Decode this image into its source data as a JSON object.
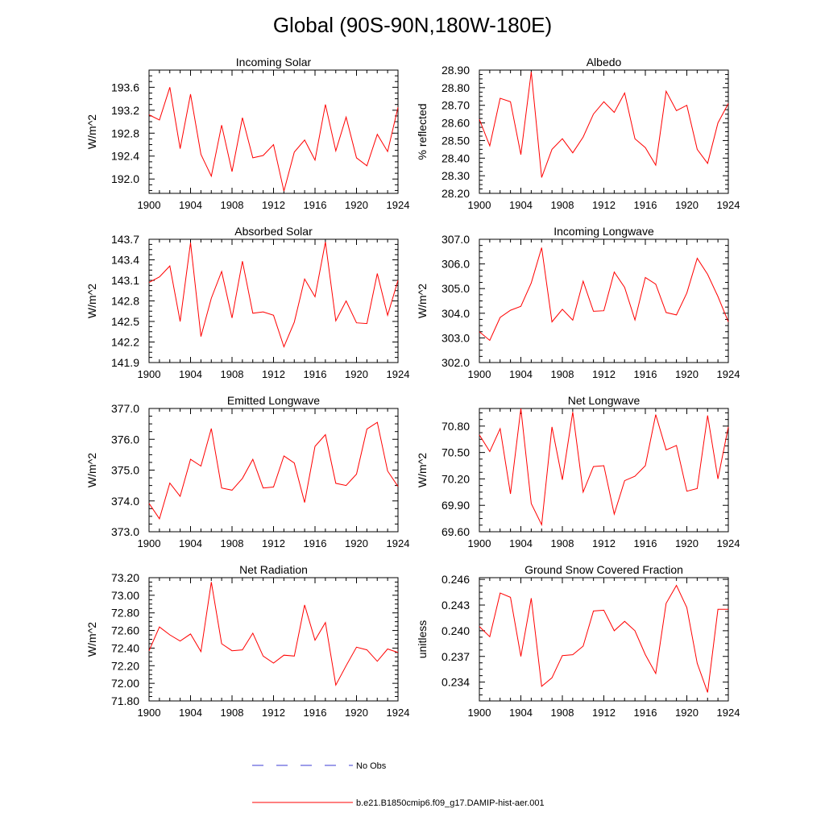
{
  "title": "Global (90S-90N,180W-180E)",
  "legend": {
    "items": [
      {
        "label": "No Obs",
        "color": "#3b3bd6",
        "style": "dashed"
      },
      {
        "label": "b.e21.B1850cmip6.f09_g17.DAMIP-hist-aer.001",
        "color": "#ff0000",
        "style": "solid"
      }
    ]
  },
  "chart_data": [
    {
      "type": "line",
      "title": "Incoming Solar",
      "ylabel": "W/m^2",
      "xlim": [
        1900,
        1924
      ],
      "ylim": [
        191.75,
        193.9
      ],
      "xticks": [
        "1900",
        "1904",
        "1908",
        "1912",
        "1916",
        "1920",
        "1924"
      ],
      "yticks": [
        "192.0",
        "192.4",
        "192.8",
        "193.2",
        "193.6"
      ],
      "series": [
        {
          "color": "#ff0000",
          "x": [
            1900,
            1901,
            1902,
            1903,
            1904,
            1905,
            1906,
            1907,
            1908,
            1909,
            1910,
            1911,
            1912,
            1913,
            1914,
            1915,
            1916,
            1917,
            1918,
            1919,
            1920,
            1921,
            1922,
            1923,
            1924
          ],
          "y": [
            193.12,
            193.03,
            193.6,
            192.53,
            193.48,
            192.43,
            192.05,
            192.94,
            192.13,
            193.07,
            192.37,
            192.41,
            192.6,
            191.79,
            192.47,
            192.68,
            192.33,
            193.3,
            192.49,
            193.08,
            192.37,
            192.23,
            192.78,
            192.48,
            193.25
          ]
        }
      ]
    },
    {
      "type": "line",
      "title": "Albedo",
      "ylabel": "% reflected",
      "xlim": [
        1900,
        1924
      ],
      "ylim": [
        28.2,
        28.9
      ],
      "xticks": [
        "1900",
        "1904",
        "1908",
        "1912",
        "1916",
        "1920",
        "1924"
      ],
      "yticks": [
        "28.20",
        "28.30",
        "28.40",
        "28.50",
        "28.60",
        "28.70",
        "28.80",
        "28.90"
      ],
      "series": [
        {
          "color": "#ff0000",
          "x": [
            1900,
            1901,
            1902,
            1903,
            1904,
            1905,
            1906,
            1907,
            1908,
            1909,
            1910,
            1911,
            1912,
            1913,
            1914,
            1915,
            1916,
            1917,
            1918,
            1919,
            1920,
            1921,
            1922,
            1923,
            1924
          ],
          "y": [
            28.62,
            28.47,
            28.74,
            28.72,
            28.42,
            28.89,
            28.29,
            28.45,
            28.51,
            28.43,
            28.52,
            28.65,
            28.72,
            28.66,
            28.77,
            28.51,
            28.46,
            28.36,
            28.78,
            28.67,
            28.7,
            28.45,
            28.37,
            28.6,
            28.71
          ]
        }
      ]
    },
    {
      "type": "line",
      "title": "Absorbed Solar",
      "ylabel": "W/m^2",
      "xlim": [
        1900,
        1924
      ],
      "ylim": [
        141.9,
        143.7
      ],
      "xticks": [
        "1900",
        "1904",
        "1908",
        "1912",
        "1916",
        "1920",
        "1924"
      ],
      "yticks": [
        "141.9",
        "142.2",
        "142.5",
        "142.8",
        "143.1",
        "143.4",
        "143.7"
      ],
      "series": [
        {
          "color": "#ff0000",
          "x": [
            1900,
            1901,
            1902,
            1903,
            1904,
            1905,
            1906,
            1907,
            1908,
            1909,
            1910,
            1911,
            1912,
            1913,
            1914,
            1915,
            1916,
            1917,
            1918,
            1919,
            1920,
            1921,
            1922,
            1923,
            1924
          ],
          "y": [
            143.07,
            143.15,
            143.31,
            142.5,
            143.65,
            142.28,
            142.84,
            143.23,
            142.55,
            143.38,
            142.62,
            142.64,
            142.59,
            142.13,
            142.49,
            143.12,
            142.86,
            143.66,
            142.51,
            142.8,
            142.48,
            142.47,
            143.2,
            142.59,
            143.1
          ]
        }
      ]
    },
    {
      "type": "line",
      "title": "Incoming Longwave",
      "ylabel": "W/m^2",
      "xlim": [
        1900,
        1924
      ],
      "ylim": [
        302.0,
        307.0
      ],
      "xticks": [
        "1900",
        "1904",
        "1908",
        "1912",
        "1916",
        "1920",
        "1924"
      ],
      "yticks": [
        "302.0",
        "303.0",
        "304.0",
        "305.0",
        "306.0",
        "307.0"
      ],
      "series": [
        {
          "color": "#ff0000",
          "x": [
            1900,
            1901,
            1902,
            1903,
            1904,
            1905,
            1906,
            1907,
            1908,
            1909,
            1910,
            1911,
            1912,
            1913,
            1914,
            1915,
            1916,
            1917,
            1918,
            1919,
            1920,
            1921,
            1922,
            1923,
            1924
          ],
          "y": [
            303.25,
            302.9,
            303.83,
            304.12,
            304.28,
            305.23,
            306.66,
            303.65,
            304.16,
            303.72,
            305.3,
            304.08,
            304.1,
            305.67,
            305.05,
            303.73,
            305.45,
            305.18,
            304.03,
            303.93,
            304.82,
            306.23,
            305.58,
            304.68,
            303.65
          ]
        }
      ]
    },
    {
      "type": "line",
      "title": "Emitted Longwave",
      "ylabel": "W/m^2",
      "xlim": [
        1900,
        1924
      ],
      "ylim": [
        373.0,
        377.0
      ],
      "xticks": [
        "1900",
        "1904",
        "1908",
        "1912",
        "1916",
        "1920",
        "1924"
      ],
      "yticks": [
        "373.0",
        "374.0",
        "375.0",
        "376.0",
        "377.0"
      ],
      "series": [
        {
          "color": "#ff0000",
          "x": [
            1900,
            1901,
            1902,
            1903,
            1904,
            1905,
            1906,
            1907,
            1908,
            1909,
            1910,
            1911,
            1912,
            1913,
            1914,
            1915,
            1916,
            1917,
            1918,
            1919,
            1920,
            1921,
            1922,
            1923,
            1924
          ],
          "y": [
            373.92,
            373.42,
            374.58,
            374.15,
            375.35,
            375.13,
            376.35,
            374.42,
            374.35,
            374.73,
            375.35,
            374.42,
            374.45,
            375.46,
            375.23,
            373.95,
            375.77,
            376.15,
            374.57,
            374.5,
            374.87,
            376.33,
            376.55,
            374.97,
            374.47
          ]
        }
      ]
    },
    {
      "type": "line",
      "title": "Net Longwave",
      "ylabel": "W/m^2",
      "xlim": [
        1900,
        1924
      ],
      "ylim": [
        69.6,
        71.0
      ],
      "xticks": [
        "1900",
        "1904",
        "1908",
        "1912",
        "1916",
        "1920",
        "1924"
      ],
      "yticks": [
        "69.60",
        "69.90",
        "70.20",
        "70.50",
        "70.80"
      ],
      "series": [
        {
          "color": "#ff0000",
          "x": [
            1900,
            1901,
            1902,
            1903,
            1904,
            1905,
            1906,
            1907,
            1908,
            1909,
            1910,
            1911,
            1912,
            1913,
            1914,
            1915,
            1916,
            1917,
            1918,
            1919,
            1920,
            1921,
            1922,
            1923,
            1924
          ],
          "y": [
            70.7,
            70.51,
            70.77,
            70.03,
            71.0,
            69.92,
            69.68,
            70.79,
            70.19,
            70.96,
            70.05,
            70.34,
            70.35,
            69.8,
            70.18,
            70.23,
            70.35,
            70.93,
            70.53,
            70.58,
            70.06,
            70.09,
            70.92,
            70.2,
            70.79
          ]
        }
      ]
    },
    {
      "type": "line",
      "title": "Net Radiation",
      "ylabel": "W/m^2",
      "xlim": [
        1900,
        1924
      ],
      "ylim": [
        71.8,
        73.2
      ],
      "xticks": [
        "1900",
        "1904",
        "1908",
        "1912",
        "1916",
        "1920",
        "1924"
      ],
      "yticks": [
        "71.80",
        "72.00",
        "72.20",
        "72.40",
        "72.60",
        "72.80",
        "73.00",
        "73.20"
      ],
      "series": [
        {
          "color": "#ff0000",
          "x": [
            1900,
            1901,
            1902,
            1903,
            1904,
            1905,
            1906,
            1907,
            1908,
            1909,
            1910,
            1911,
            1912,
            1913,
            1914,
            1915,
            1916,
            1917,
            1918,
            1919,
            1920,
            1921,
            1922,
            1923,
            1924
          ],
          "y": [
            72.37,
            72.64,
            72.55,
            72.48,
            72.56,
            72.36,
            73.15,
            72.45,
            72.37,
            72.38,
            72.57,
            72.31,
            72.23,
            72.32,
            72.31,
            72.89,
            72.49,
            72.69,
            71.98,
            72.2,
            72.41,
            72.38,
            72.25,
            72.39,
            72.35
          ]
        }
      ]
    },
    {
      "type": "line",
      "title": "Ground Snow Covered Fraction",
      "ylabel": "unitless",
      "xlim": [
        1900,
        1924
      ],
      "ylim": [
        0.2318,
        0.2462
      ],
      "xticks": [
        "1900",
        "1904",
        "1908",
        "1912",
        "1916",
        "1920",
        "1924"
      ],
      "yticks": [
        "0.234",
        "0.237",
        "0.240",
        "0.243",
        "0.246"
      ],
      "series": [
        {
          "color": "#ff0000",
          "x": [
            1900,
            1901,
            1902,
            1903,
            1904,
            1905,
            1906,
            1907,
            1908,
            1909,
            1910,
            1911,
            1912,
            1913,
            1914,
            1915,
            1916,
            1917,
            1918,
            1919,
            1920,
            1921,
            1922,
            1923,
            1924
          ],
          "y": [
            0.2405,
            0.2393,
            0.2444,
            0.2439,
            0.237,
            0.2438,
            0.2335,
            0.2345,
            0.2371,
            0.2372,
            0.2382,
            0.2423,
            0.2424,
            0.24,
            0.2411,
            0.24,
            0.2372,
            0.235,
            0.2432,
            0.2453,
            0.2427,
            0.2362,
            0.2328,
            0.2425,
            0.2425
          ]
        }
      ]
    }
  ]
}
